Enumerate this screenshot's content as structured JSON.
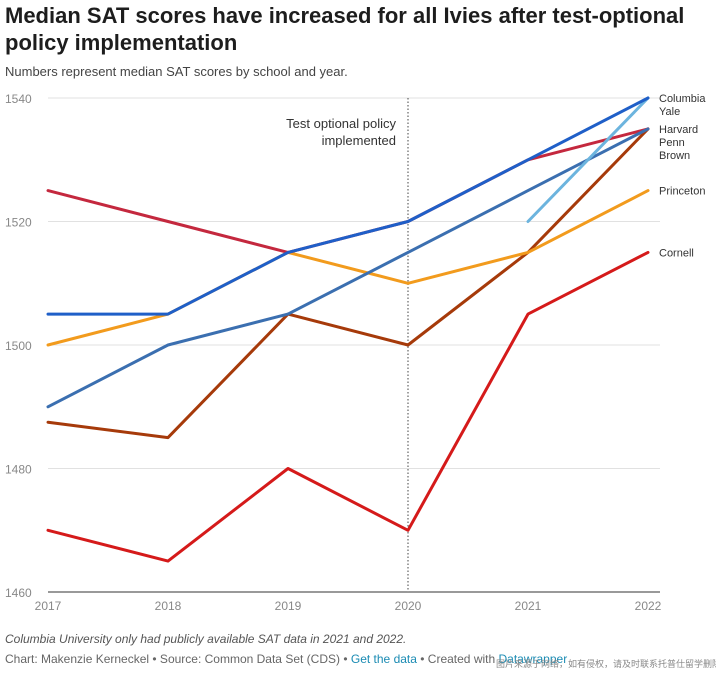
{
  "header": {
    "title": "Median SAT scores have increased for all Ivies after test-optional policy implementation",
    "subtitle": "Numbers represent median SAT scores by school and year."
  },
  "chart_data": {
    "type": "line",
    "title": "Median SAT scores have increased for all Ivies after test-optional policy implementation",
    "subtitle": "Numbers represent median SAT scores by school and year.",
    "xlabel": "",
    "ylabel": "",
    "x": [
      2017,
      2018,
      2019,
      2020,
      2021,
      2022
    ],
    "x_tick_labels": [
      "2017",
      "2018",
      "2019",
      "2020",
      "2021",
      "2022"
    ],
    "ylim": [
      1460,
      1540
    ],
    "y_ticks": [
      1460,
      1480,
      1500,
      1520,
      1540
    ],
    "y_tick_labels": [
      "1460",
      "1480",
      "1500",
      "1520",
      "1540"
    ],
    "grid": true,
    "annotation": {
      "x": 2020,
      "lines": [
        "Test optional policy",
        "implemented"
      ]
    },
    "series": [
      {
        "name": "Cornell",
        "label": "Cornell",
        "color": "#d51a1a",
        "values": [
          1470,
          1465,
          1480,
          1470,
          1505,
          1515
        ]
      },
      {
        "name": "Harvard",
        "label": "Harvard",
        "color": "#a63a0a",
        "values": [
          1487.5,
          1485,
          1505,
          1500,
          1515,
          1535
        ]
      },
      {
        "name": "Princeton",
        "label": "Princeton",
        "color": "#f29b1d",
        "values": [
          1500,
          1505,
          1515,
          1510,
          1515,
          1525
        ]
      },
      {
        "name": "Penn",
        "label": "Penn",
        "color": "#c4283e",
        "values": [
          1525,
          1520,
          1515,
          1520,
          1530,
          1535
        ]
      },
      {
        "name": "Brown",
        "label": "Brown",
        "color": "#3b6fb0",
        "values": [
          1490,
          1500,
          1505,
          1515,
          1525,
          1535
        ]
      },
      {
        "name": "Columbia",
        "label": "Columbia",
        "color": "#6cb4de",
        "values": [
          null,
          null,
          null,
          null,
          1520,
          1540
        ]
      },
      {
        "name": "Yale",
        "label": "Yale",
        "color": "#1f5fc8",
        "values": [
          1505,
          1505,
          1515,
          1520,
          1530,
          1540
        ]
      }
    ]
  },
  "footer": {
    "note": "Columbia University only had publicly available SAT data in 2021 and 2022.",
    "credit": "Chart: Makenzie Kerneckel • Source: Common Data Set (CDS) • ",
    "get_data": "Get the data",
    "created_with": " • Created with ",
    "datawrapper": "Datawrapper",
    "watermark": "图片来源于网络，如有侵权，请及时联系托普仕留学删除"
  }
}
